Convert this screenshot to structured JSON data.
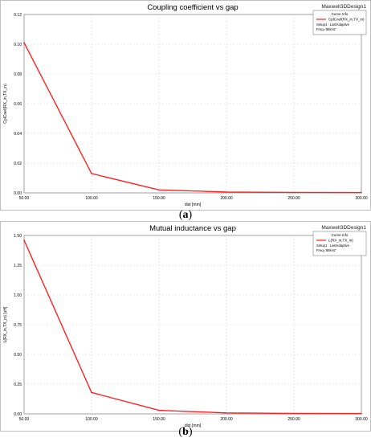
{
  "chart_data": [
    {
      "type": "line",
      "title": "Coupling coefficient vs gap",
      "project_label": "Maxwell3DDesign1",
      "xlabel": "dist [mm]",
      "ylabel": "CplCoef(RX_in,TX_in)",
      "x": [
        50,
        100,
        150,
        200,
        250,
        300
      ],
      "xlim": [
        50,
        300
      ],
      "ylim": [
        0,
        0.12
      ],
      "xticks": [
        "50.00",
        "100.00",
        "150.00",
        "200.00",
        "250.00",
        "300.00"
      ],
      "yticks": [
        "0.00",
        "0.02",
        "0.04",
        "0.06",
        "0.08",
        "0.10",
        "0.12"
      ],
      "grid": true,
      "legend": {
        "title": "Curve Info",
        "placement": "top-right",
        "entry": "CplCoef(RX_in,TX_in)",
        "setup": "Setup1 : LastAdaptive",
        "freq": "Freq='85kHz'"
      },
      "series": [
        {
          "name": "CplCoef(RX_in,TX_in)",
          "color": "#ff2222",
          "values": [
            0.101,
            0.013,
            0.002,
            0.0006,
            0.0003,
            0.0002
          ]
        }
      ],
      "caption_label": "a"
    },
    {
      "type": "line",
      "title": "Mutual inductance vs gap",
      "project_label": "Maxwell3DDesign1",
      "xlabel": "dist [mm]",
      "ylabel": "L(RX_in,TX_in) [uH]",
      "x": [
        50,
        100,
        150,
        200,
        250,
        300
      ],
      "xlim": [
        50,
        300
      ],
      "ylim": [
        0,
        1.5
      ],
      "xticks": [
        "50.00",
        "100.00",
        "150.00",
        "200.00",
        "250.00",
        "300.00"
      ],
      "yticks": [
        "0.00",
        "0.25",
        "0.50",
        "0.75",
        "1.00",
        "1.25",
        "1.50"
      ],
      "grid": true,
      "legend": {
        "title": "Curve Info",
        "placement": "top-right",
        "entry": "L(RX_in,TX_in)",
        "setup": "Setup1 : LastAdaptive",
        "freq": "Freq='85kHz'"
      },
      "series": [
        {
          "name": "L(RX_in,TX_in)",
          "color": "#ff2222",
          "values": [
            1.46,
            0.18,
            0.03,
            0.008,
            0.004,
            0.003
          ]
        }
      ],
      "caption_label": "b"
    }
  ]
}
